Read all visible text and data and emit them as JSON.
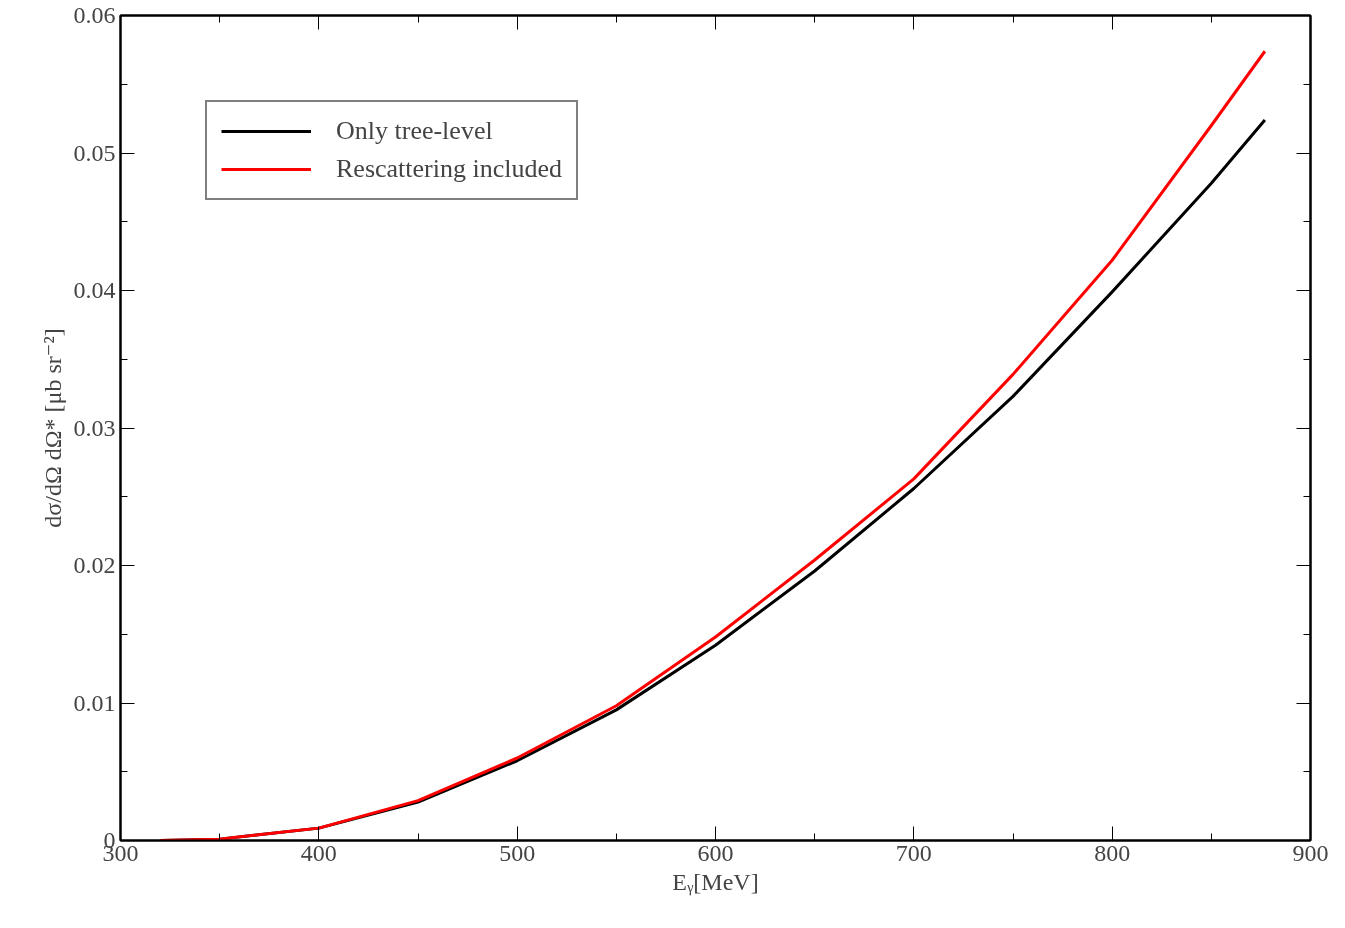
{
  "chart_data": {
    "type": "line",
    "xlabel": "Eᵧ[MeV]",
    "ylabel": "dσ/dΩ dΩ* [μb sr⁻²]",
    "x": [
      320,
      350,
      400,
      450,
      500,
      550,
      600,
      650,
      700,
      750,
      800,
      850,
      877
    ],
    "series": [
      {
        "name": "Only tree-level",
        "color": "#000000",
        "values": [
          0,
          0.0001,
          0.0009,
          0.0028,
          0.0058,
          0.0095,
          0.0142,
          0.0196,
          0.0256,
          0.0323,
          0.0399,
          0.0478,
          0.0524
        ]
      },
      {
        "name": "Rescattering included",
        "color": "#ff0000",
        "values": [
          0,
          0.0001,
          0.0009,
          0.0029,
          0.006,
          0.0098,
          0.0148,
          0.0204,
          0.0263,
          0.0339,
          0.0422,
          0.052,
          0.0574
        ]
      }
    ],
    "xlim": [
      300,
      900
    ],
    "ylim": [
      0,
      0.06
    ],
    "xticks": [
      300,
      400,
      500,
      600,
      700,
      800,
      900
    ],
    "yticks": [
      0,
      0.01,
      0.02,
      0.03,
      0.04,
      0.05,
      0.06
    ],
    "grid": false,
    "legend": "top left",
    "marker": "none",
    "line_style": "solid"
  }
}
